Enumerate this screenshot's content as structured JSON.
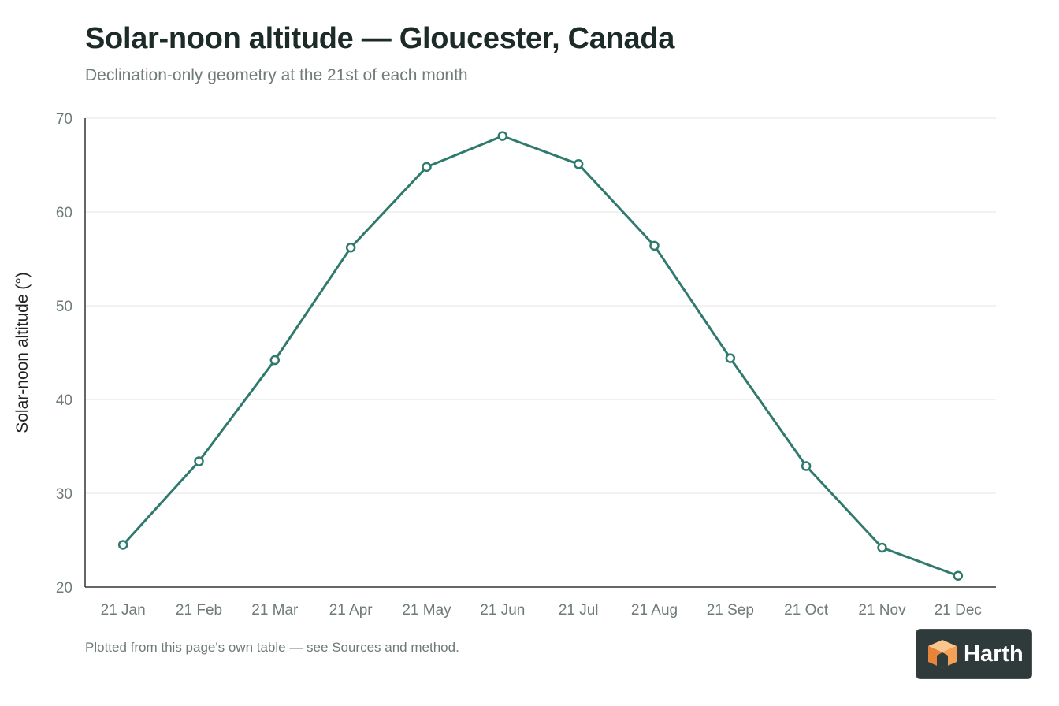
{
  "title": "Solar-noon altitude — Gloucester, Canada",
  "subtitle": "Declination-only geometry at the 21st of each month",
  "footnote": "Plotted from this page's own table — see Sources and method.",
  "logo": {
    "text": "Harth",
    "icon": "harth-cube-logo-icon"
  },
  "colors": {
    "line": "#2f7a6d",
    "point_fill": "#ffffff",
    "grid": "#e6e6e6",
    "axis": "#333333",
    "tick_text": "#6f7b78",
    "label_text": "#222222"
  },
  "chart_data": {
    "type": "line",
    "title": "Solar-noon altitude — Gloucester, Canada",
    "subtitle": "Declination-only geometry at the 21st of each month",
    "xlabel": "",
    "ylabel": "Solar-noon altitude (°)",
    "categories": [
      "21 Jan",
      "21 Feb",
      "21 Mar",
      "21 Apr",
      "21 May",
      "21 Jun",
      "21 Jul",
      "21 Aug",
      "21 Sep",
      "21 Oct",
      "21 Nov",
      "21 Dec"
    ],
    "series": [
      {
        "values": [
          24.5,
          33.4,
          44.2,
          56.2,
          64.8,
          68.1,
          65.1,
          56.4,
          44.4,
          32.9,
          24.2,
          21.2
        ]
      }
    ],
    "ylim": [
      20,
      70
    ],
    "yticks": [
      20,
      30,
      40,
      50,
      60,
      70
    ],
    "grid": true,
    "legend": "none"
  }
}
